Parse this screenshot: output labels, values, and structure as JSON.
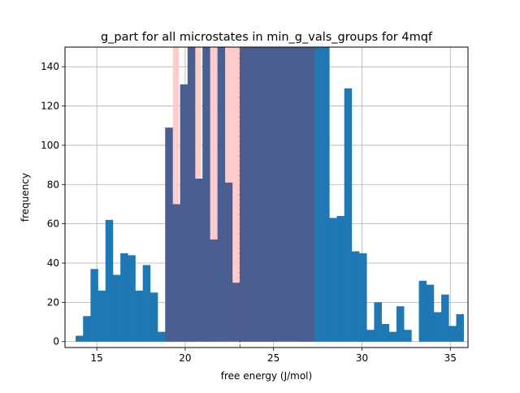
{
  "chart_data": {
    "type": "bar",
    "title": "g_part for all microstates in min_g_vals_groups for 4mqf",
    "xlabel": "free energy (J/mol)",
    "ylabel": "frequency",
    "xlim": [
      13.2,
      36.0
    ],
    "ylim": [
      -3,
      150
    ],
    "xticks": [
      15,
      20,
      25,
      30,
      35
    ],
    "yticks": [
      0,
      20,
      40,
      60,
      80,
      100,
      120,
      140
    ],
    "grid": true,
    "bin_start": 13.8,
    "bin_width": 0.4222,
    "values": [
      3,
      13,
      37,
      26,
      62,
      34,
      45,
      44,
      26,
      39,
      25,
      5,
      109,
      70,
      131,
      150,
      83,
      150,
      52,
      150,
      81,
      30,
      150,
      150,
      150,
      150,
      150,
      150,
      150,
      150,
      150,
      150,
      150,
      150,
      63,
      64,
      129,
      46,
      45,
      6,
      20,
      9,
      5,
      18,
      6,
      0,
      31,
      29,
      15,
      24,
      8,
      14
    ],
    "highlight_band": {
      "from": 19.3,
      "to": 27.0
    },
    "highlight_bins": [
      {
        "from": 19.3,
        "to": 19.65,
        "value": 150
      },
      {
        "from": 20.5,
        "to": 20.9,
        "value": 150
      },
      {
        "from": 21.4,
        "to": 21.8,
        "value": 150
      },
      {
        "from": 22.1,
        "to": 22.9,
        "value": 150
      },
      {
        "from": 22.6,
        "to": 23.1,
        "value": 150
      },
      {
        "from": 25.2,
        "to": 25.5,
        "value": 150
      },
      {
        "from": 25.5,
        "to": 26.0,
        "value": 150
      },
      {
        "from": 26.0,
        "to": 26.4,
        "value": 150
      }
    ],
    "vline": 23.1,
    "colors": {
      "bar": "#1f77b4",
      "highlight": "#ffcccc",
      "vline": "#d62728",
      "grid": "#b0b0b0"
    }
  }
}
